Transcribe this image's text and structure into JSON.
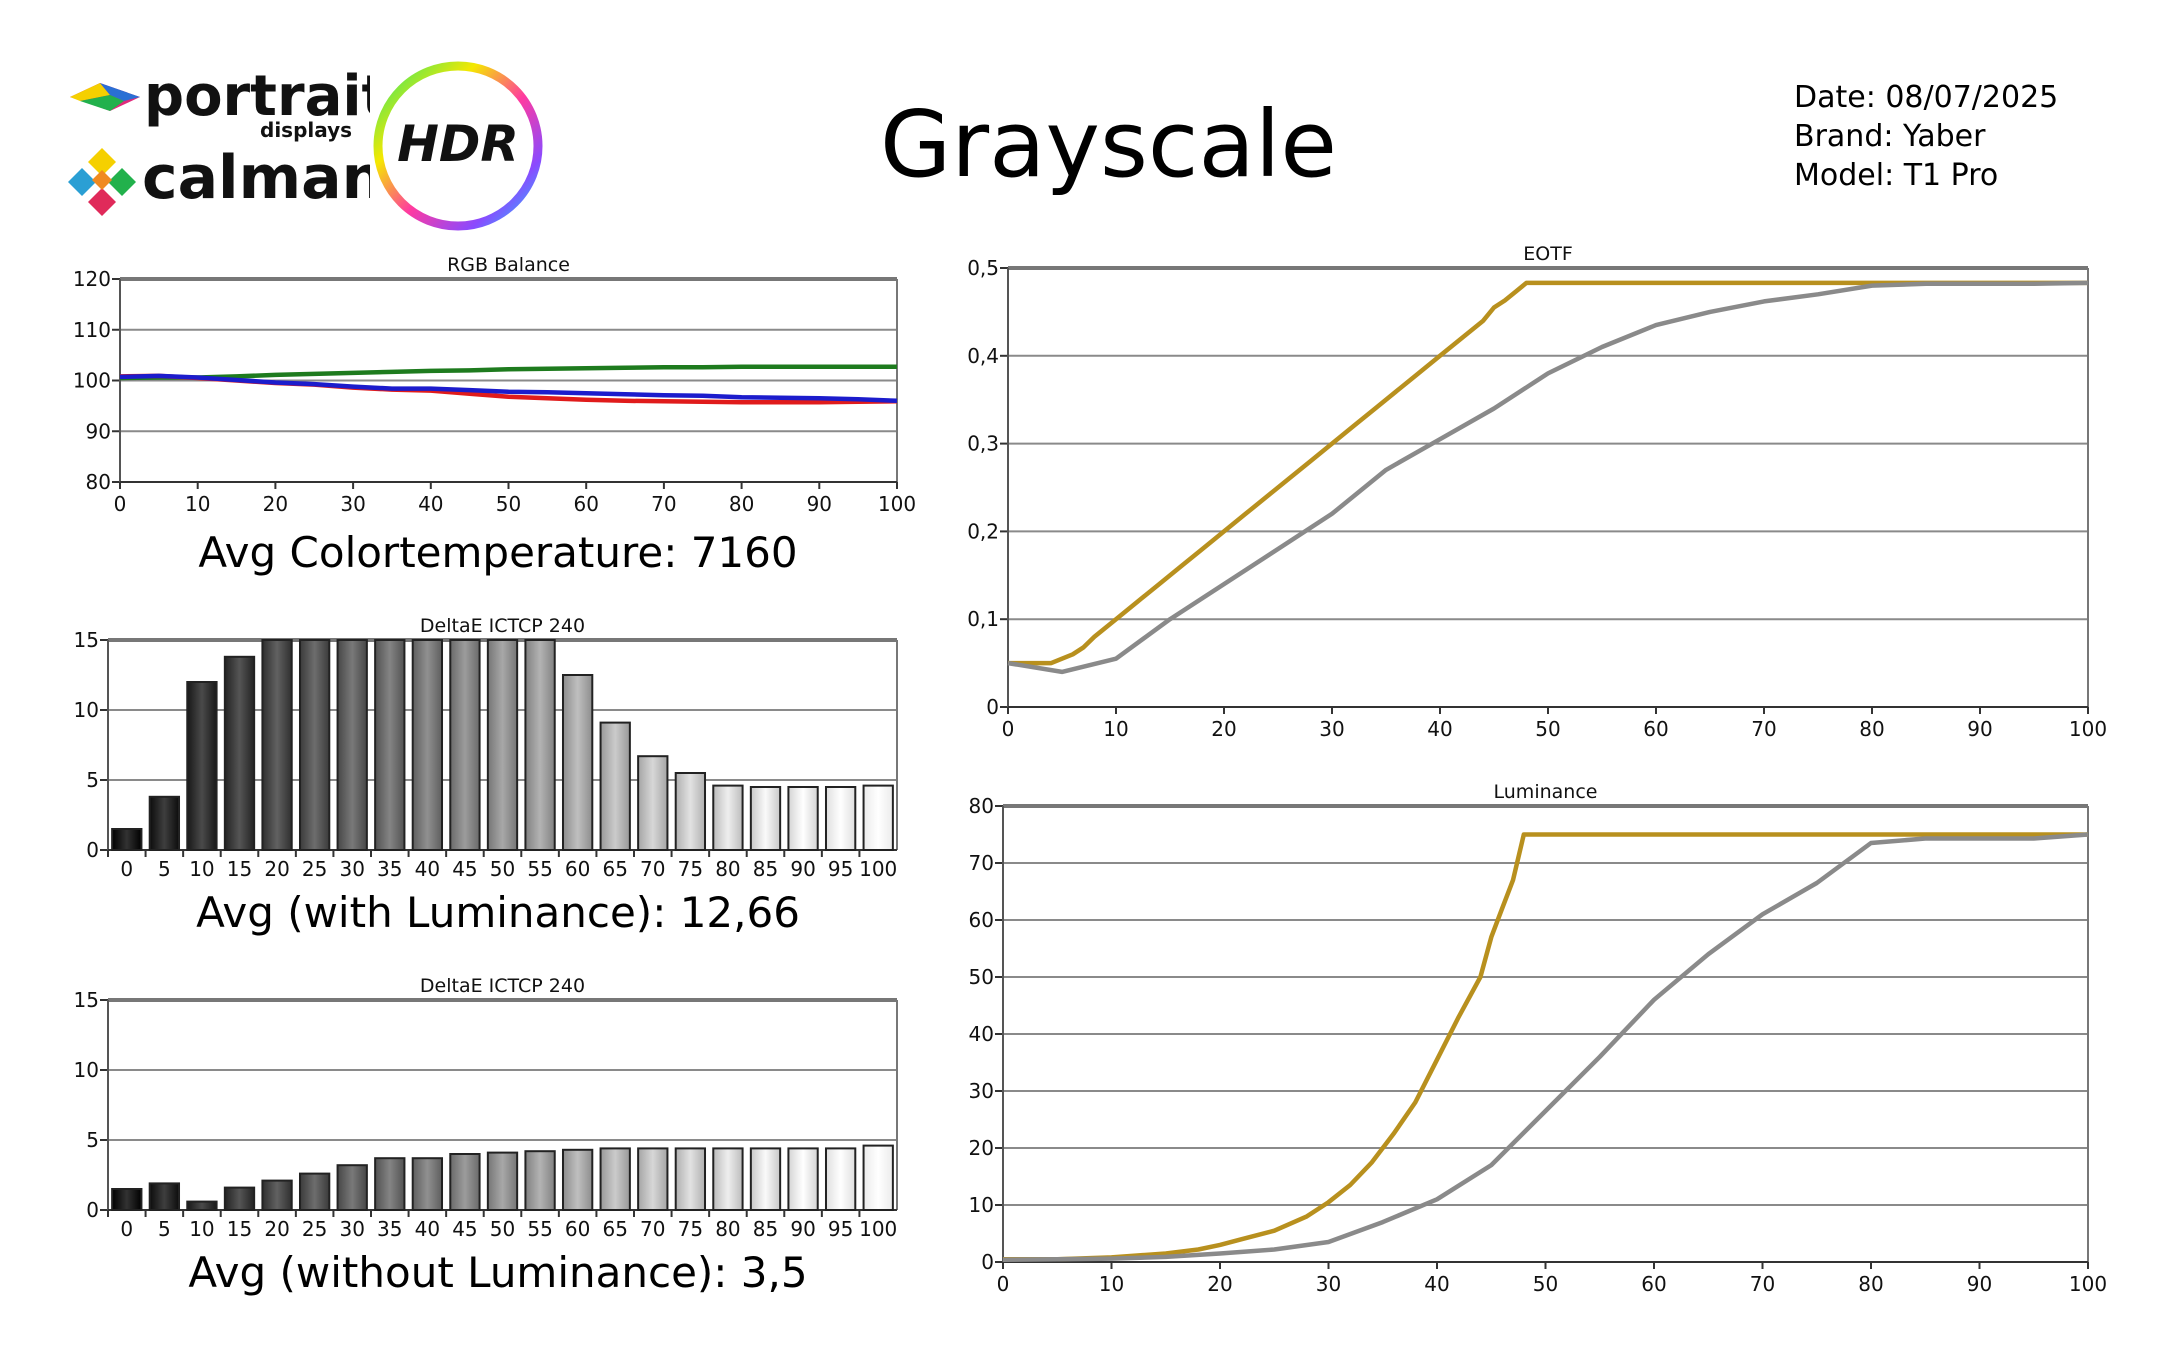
{
  "header": {
    "title": "Grayscale",
    "date": "Date: 08/07/2025",
    "brand": "Brand: Yaber",
    "model": "Model: T1 Pro",
    "logo_text_portrait": "portrait",
    "logo_text_displays": "displays",
    "logo_text_calman": "calman",
    "logo_text_hdr": "HDR"
  },
  "summaries": {
    "color_temperature": "Avg Colortemperature: 7160",
    "with_luminance": "Avg (with Luminance): 12,66",
    "without_luminance": "Avg (without Luminance): 3,5"
  },
  "chart_data": [
    {
      "id": "rgb",
      "type": "line",
      "title": "RGB Balance",
      "xlim": [
        0,
        100
      ],
      "ylim": [
        80,
        120
      ],
      "xticks": [
        0,
        10,
        20,
        30,
        40,
        50,
        60,
        70,
        80,
        90,
        100
      ],
      "yticks": [
        80,
        90,
        100,
        110,
        120
      ],
      "grid": true,
      "series": [
        {
          "color": "#1e7b1e",
          "x": [
            0,
            5,
            10,
            15,
            20,
            25,
            30,
            35,
            40,
            45,
            50,
            55,
            60,
            65,
            70,
            75,
            80,
            85,
            90,
            95,
            100
          ],
          "y": [
            100.5,
            100.6,
            100.6,
            100.8,
            101.1,
            101.3,
            101.5,
            101.7,
            101.9,
            102.0,
            102.2,
            102.3,
            102.4,
            102.5,
            102.6,
            102.6,
            102.7,
            102.7,
            102.7,
            102.7,
            102.7
          ]
        },
        {
          "color": "#e01b1b",
          "x": [
            0,
            5,
            10,
            15,
            20,
            25,
            30,
            35,
            40,
            45,
            50,
            55,
            60,
            65,
            70,
            75,
            80,
            85,
            90,
            95,
            100
          ],
          "y": [
            100.8,
            100.9,
            100.5,
            100.0,
            99.5,
            99.2,
            98.6,
            98.2,
            98.0,
            97.4,
            96.8,
            96.5,
            96.2,
            96.0,
            95.9,
            95.8,
            95.7,
            95.7,
            95.7,
            95.8,
            95.9
          ]
        },
        {
          "color": "#1c1ccc",
          "x": [
            0,
            5,
            10,
            15,
            20,
            25,
            30,
            35,
            40,
            45,
            50,
            55,
            60,
            65,
            70,
            75,
            80,
            85,
            90,
            95,
            100
          ],
          "y": [
            100.7,
            100.9,
            100.6,
            100.1,
            99.6,
            99.3,
            98.8,
            98.4,
            98.4,
            98.1,
            97.8,
            97.7,
            97.5,
            97.3,
            97.1,
            97.0,
            96.7,
            96.6,
            96.5,
            96.3,
            96.0
          ]
        }
      ]
    },
    {
      "id": "de1",
      "type": "bar",
      "title": "DeltaE ICTCP 240",
      "categories": [
        "0",
        "5",
        "10",
        "15",
        "20",
        "25",
        "30",
        "35",
        "40",
        "45",
        "50",
        "55",
        "60",
        "65",
        "70",
        "75",
        "80",
        "85",
        "90",
        "95",
        "100"
      ],
      "values": [
        1.5,
        3.8,
        12.0,
        13.8,
        15,
        15,
        15,
        15,
        15,
        15,
        15,
        15,
        12.5,
        9.1,
        6.7,
        5.5,
        4.6,
        4.5,
        4.5,
        4.5,
        4.6
      ],
      "ylim": [
        0,
        15
      ],
      "yticks": [
        0,
        5,
        10,
        15
      ],
      "grid": true
    },
    {
      "id": "de2",
      "type": "bar",
      "title": "DeltaE ICTCP 240",
      "categories": [
        "0",
        "5",
        "10",
        "15",
        "20",
        "25",
        "30",
        "35",
        "40",
        "45",
        "50",
        "55",
        "60",
        "65",
        "70",
        "75",
        "80",
        "85",
        "90",
        "95",
        "100"
      ],
      "values": [
        1.5,
        1.9,
        0.6,
        1.6,
        2.1,
        2.6,
        3.2,
        3.7,
        3.7,
        4.0,
        4.1,
        4.2,
        4.3,
        4.4,
        4.4,
        4.4,
        4.4,
        4.4,
        4.4,
        4.4,
        4.6
      ],
      "ylim": [
        0,
        15
      ],
      "yticks": [
        0,
        5,
        10,
        15
      ],
      "grid": true
    },
    {
      "id": "eotf",
      "type": "line",
      "title": "EOTF",
      "xlim": [
        0,
        100
      ],
      "ylim": [
        0,
        0.5
      ],
      "xticks": [
        0,
        10,
        20,
        30,
        40,
        50,
        60,
        70,
        80,
        90,
        100
      ],
      "yticks": [
        0,
        0.1,
        0.2,
        0.3,
        0.4,
        0.5
      ],
      "ytick_labels": [
        "0",
        "0,1",
        "0,2",
        "0,3",
        "0,4",
        "0,5"
      ],
      "grid": true,
      "series": [
        {
          "color": "#b8901e",
          "x": [
            0,
            2,
            4,
            5,
            6,
            7,
            8,
            10,
            12,
            14,
            16,
            18,
            20,
            22,
            24,
            26,
            28,
            30,
            32,
            34,
            36,
            38,
            40,
            42,
            44,
            45,
            46,
            47,
            48,
            50,
            60,
            70,
            80,
            90,
            100
          ],
          "y": [
            0.05,
            0.05,
            0.05,
            0.055,
            0.06,
            0.068,
            0.08,
            0.1,
            0.12,
            0.14,
            0.16,
            0.18,
            0.2,
            0.22,
            0.24,
            0.26,
            0.28,
            0.3,
            0.32,
            0.34,
            0.36,
            0.38,
            0.4,
            0.42,
            0.44,
            0.455,
            0.463,
            0.473,
            0.483,
            0.483,
            0.483,
            0.483,
            0.483,
            0.483,
            0.483
          ]
        },
        {
          "color": "#8a8a8a",
          "x": [
            0,
            5,
            10,
            15,
            20,
            25,
            30,
            35,
            40,
            45,
            50,
            55,
            60,
            65,
            70,
            75,
            80,
            85,
            90,
            95,
            100
          ],
          "y": [
            0.05,
            0.04,
            0.055,
            0.1,
            0.14,
            0.18,
            0.22,
            0.27,
            0.305,
            0.34,
            0.38,
            0.41,
            0.435,
            0.45,
            0.462,
            0.47,
            0.48,
            0.482,
            0.482,
            0.482,
            0.483
          ]
        }
      ]
    },
    {
      "id": "lum",
      "type": "line",
      "title": "Luminance",
      "xlim": [
        0,
        100
      ],
      "ylim": [
        0,
        80
      ],
      "xticks": [
        0,
        10,
        20,
        30,
        40,
        50,
        60,
        70,
        80,
        90,
        100
      ],
      "yticks": [
        0,
        10,
        20,
        30,
        40,
        50,
        60,
        70,
        80
      ],
      "grid": true,
      "series": [
        {
          "color": "#b8901e",
          "x": [
            0,
            5,
            10,
            15,
            18,
            20,
            22,
            25,
            28,
            30,
            32,
            34,
            36,
            38,
            40,
            42,
            44,
            45,
            46,
            47,
            48,
            50,
            60,
            70,
            80,
            90,
            100
          ],
          "y": [
            0.5,
            0.5,
            0.8,
            1.5,
            2.2,
            3.0,
            4.0,
            5.5,
            8.0,
            10.5,
            13.5,
            17.5,
            22.5,
            28.0,
            35.5,
            43.0,
            50.0,
            57.0,
            62.0,
            67.0,
            75.0,
            75.0,
            75.0,
            75.0,
            75.0,
            75.0,
            75.0
          ]
        },
        {
          "color": "#8a8a8a",
          "x": [
            0,
            5,
            10,
            15,
            20,
            25,
            30,
            35,
            40,
            45,
            50,
            55,
            60,
            65,
            70,
            75,
            80,
            85,
            90,
            95,
            100
          ],
          "y": [
            0.4,
            0.5,
            0.6,
            0.9,
            1.5,
            2.2,
            3.5,
            7.0,
            11.0,
            17.0,
            26.5,
            36.0,
            46.0,
            54.0,
            61.0,
            66.5,
            73.5,
            74.3,
            74.3,
            74.3,
            75.0
          ]
        }
      ]
    }
  ]
}
